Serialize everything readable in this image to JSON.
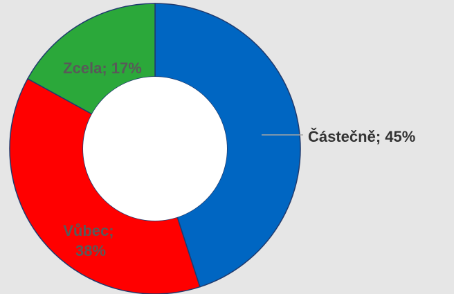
{
  "chart_data": {
    "type": "pie",
    "variant": "donut",
    "slices": [
      {
        "category": "Částečně",
        "value": 45,
        "label": "Částečně; 45%",
        "color": "#0066c2"
      },
      {
        "category": "Vůbec",
        "value": 38,
        "label_lines": [
          "Vůbec;",
          "38%"
        ],
        "color": "#ff0000"
      },
      {
        "category": "Zcela",
        "value": 17,
        "label": "Zcela; 17%",
        "color": "#2ba83a"
      }
    ],
    "label_colors": {
      "outside": "#333333",
      "inside": "#595959"
    },
    "legend": "none"
  }
}
